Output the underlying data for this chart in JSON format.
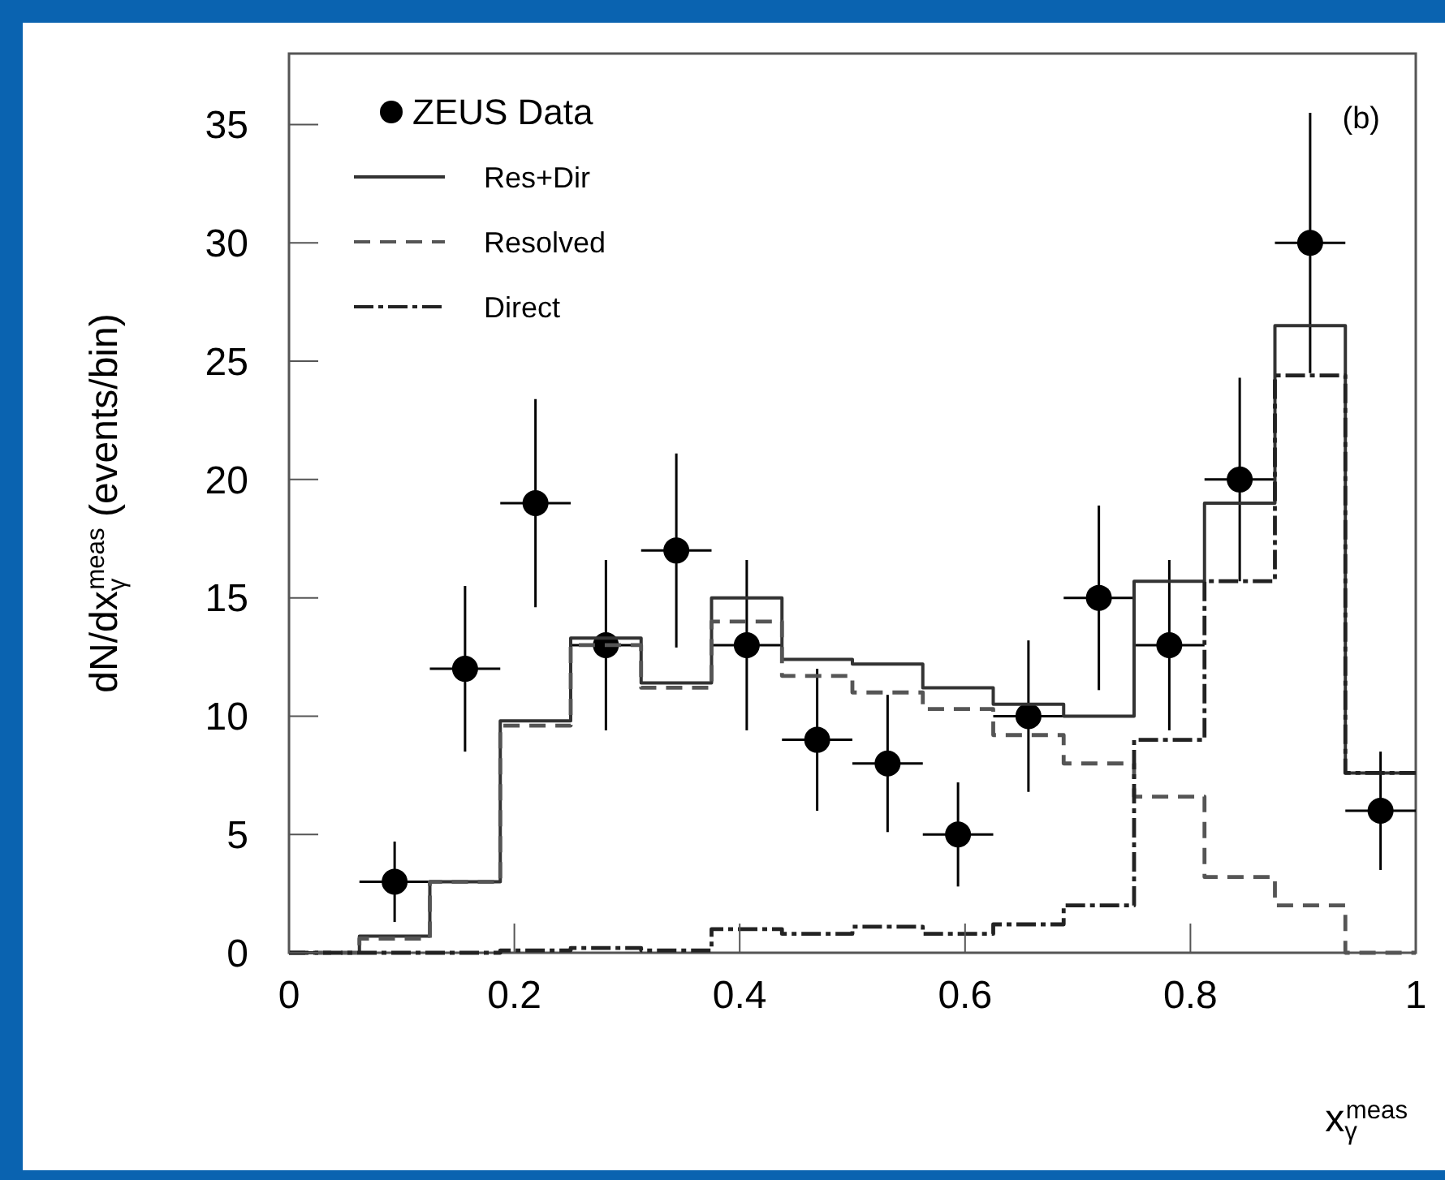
{
  "chart_data": {
    "type": "histogram",
    "xlabel": "x$_{γ}$$^{meas}$",
    "ylabel": "dN/dx$_{γ}$$^{meas}$ (events/bin)",
    "annotations": [
      "(b)"
    ],
    "bins": [
      0,
      0.0625,
      0.125,
      0.1875,
      0.25,
      0.3125,
      0.375,
      0.4375,
      0.5,
      0.5625,
      0.625,
      0.6875,
      0.75,
      0.8125,
      0.875,
      0.9375,
      1
    ],
    "xlim": [
      0,
      1
    ],
    "ylim": [
      0,
      38
    ],
    "xticks": [
      0,
      0.2,
      0.4,
      0.6,
      0.8,
      1
    ],
    "yticks": [
      0,
      5,
      10,
      15,
      20,
      25,
      30,
      35
    ],
    "legend": "top left",
    "series": [
      {
        "name": "ZEUS Data",
        "type": "scatter",
        "marker": "circle",
        "color": "#000000",
        "x": [
          0.09375,
          0.15625,
          0.21875,
          0.28125,
          0.34375,
          0.40625,
          0.46875,
          0.53125,
          0.59375,
          0.65625,
          0.71875,
          0.78125,
          0.84375,
          0.90625,
          0.96875
        ],
        "values": [
          3,
          12,
          19,
          13,
          17,
          13,
          9,
          8,
          5,
          10,
          15,
          13,
          20,
          30,
          6
        ],
        "errors": [
          1.7,
          3.5,
          4.4,
          3.6,
          4.1,
          3.6,
          3,
          2.9,
          2.2,
          3.2,
          3.9,
          3.6,
          4.3,
          5.5,
          2.5
        ],
        "xerrors": [
          0.03125,
          0.03125,
          0.03125,
          0.03125,
          0.03125,
          0.03125,
          0.03125,
          0.03125,
          0.03125,
          0.03125,
          0.03125,
          0.03125,
          0.03125,
          0.03125,
          0.03125
        ]
      },
      {
        "name": "Res+Dir",
        "type": "histogram",
        "line_style": "solid",
        "color": "#333333",
        "values": [
          0,
          0.7,
          3,
          9.8,
          13.3,
          11.4,
          15,
          12.4,
          12.2,
          11.2,
          10.5,
          10,
          15.7,
          19,
          26.5,
          7.6
        ]
      },
      {
        "name": "Resolved",
        "type": "histogram",
        "line_style": "dashed",
        "color": "#555555",
        "values": [
          0,
          0.6,
          3,
          9.6,
          13,
          11.2,
          14,
          11.7,
          11,
          10.3,
          9.2,
          8,
          6.6,
          3.2,
          2,
          0
        ]
      },
      {
        "name": "Direct",
        "type": "histogram",
        "line_style": "dashdot",
        "color": "#222222",
        "values": [
          0,
          0,
          0,
          0.1,
          0.2,
          0.1,
          1,
          0.8,
          1.1,
          0.8,
          1.2,
          2,
          9,
          15.7,
          24.4,
          7.6
        ]
      }
    ]
  }
}
